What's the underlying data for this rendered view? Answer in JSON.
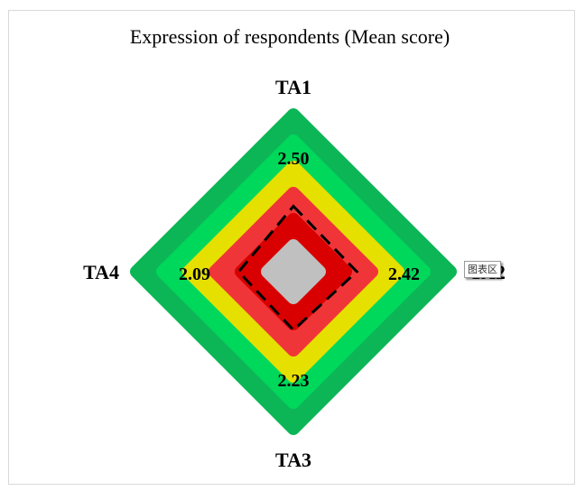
{
  "chart_data": {
    "type": "radar",
    "title": "Expression of respondents (Mean score)",
    "axes": [
      "TA1",
      "TA2",
      "TA3",
      "TA4"
    ],
    "series": [
      {
        "values": [
          2.5,
          2.42,
          2.23,
          2.09
        ]
      }
    ],
    "value_labels": [
      "2.50",
      "2.42",
      "2.23",
      "2.09"
    ],
    "rlim": [
      0,
      5
    ],
    "bands": [
      {
        "from": 0,
        "to": 1,
        "color": "#c0c0c0"
      },
      {
        "from": 1,
        "to": 2,
        "color": "#d80000"
      },
      {
        "from": 2,
        "to": 3,
        "color": "#f03538"
      },
      {
        "from": 3,
        "to": 4,
        "color": "#e6e000"
      },
      {
        "from": 4,
        "to": 5,
        "color": "#00d85c"
      },
      {
        "from": 5,
        "to": 6,
        "color": "#0cb656"
      }
    ],
    "series_style": {
      "line": "dashed",
      "color": "#000000"
    },
    "legend": "none"
  },
  "tooltip": {
    "text": "图表区"
  },
  "colors": {
    "frame_border": "#d9d9d9"
  }
}
